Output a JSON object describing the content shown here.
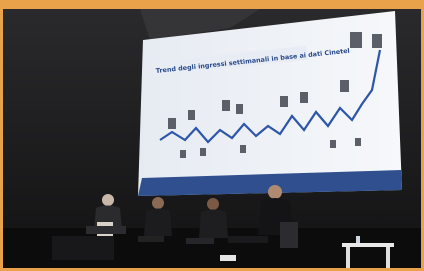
{
  "scene": {
    "slide_title": "Trend degli ingressi settimanali in base ai dati Cinetel"
  }
}
